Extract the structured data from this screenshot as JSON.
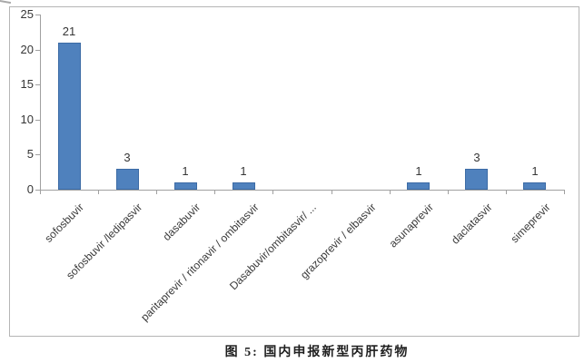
{
  "caption": {
    "text": "图 5: 国内申报新型丙肝药物"
  },
  "chart_data": {
    "type": "bar",
    "title": "图 5: 国内申报新型丙肝药物",
    "categories": [
      "sofosbuvir",
      "sofosbuvir /ledipasvir",
      "dasabuvir",
      "paritaprevir / ritonavir / ombitasvir",
      "Dasabuvir/ombitasvir/ ...",
      "grazoprevir / elbasvir",
      "asunaprevir",
      "daclatasvir",
      "simeprevir"
    ],
    "values": [
      21,
      3,
      1,
      1,
      0,
      0,
      1,
      3,
      1
    ],
    "xlabel": "",
    "ylabel": "",
    "ylim": [
      0,
      25
    ],
    "yticks": [
      0,
      5,
      10,
      15,
      20,
      25
    ],
    "grid": false,
    "legend": "none",
    "x_label_rotation_deg": 45,
    "bar_color": "#4f81bd",
    "bar_border_color": "#3c6ba5",
    "axis_color": "#a0a0a0",
    "text_color": "#363636"
  }
}
